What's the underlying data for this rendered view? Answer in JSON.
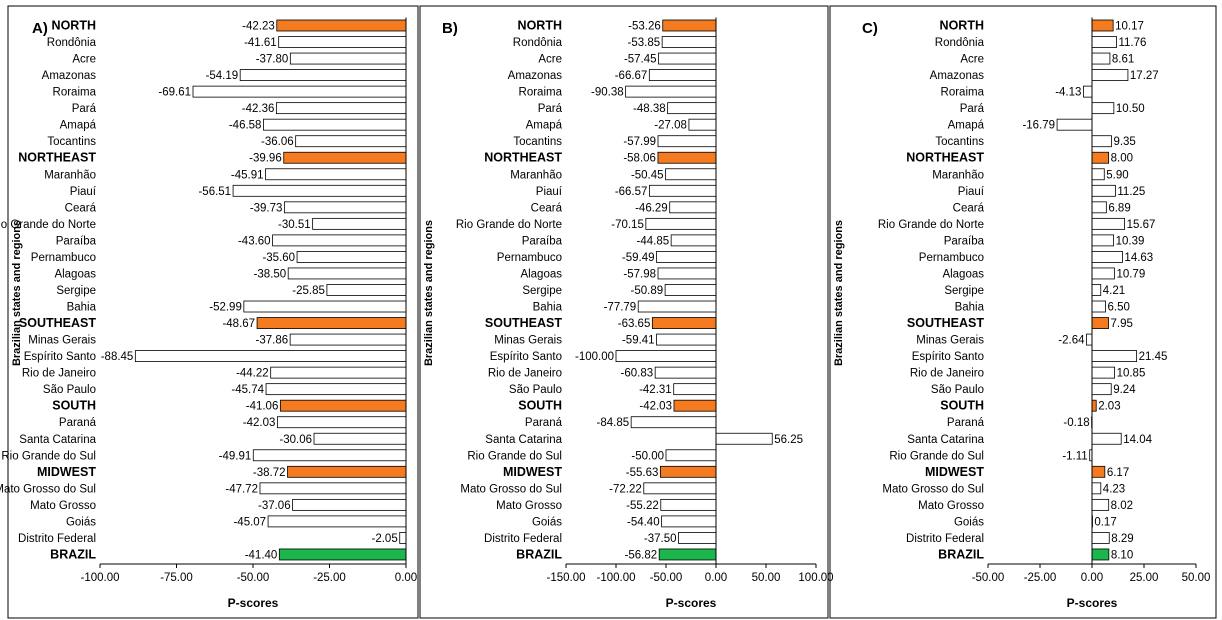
{
  "chart_data": [
    {
      "type": "bar",
      "orientation": "horizontal",
      "panel_label": "A)",
      "xlabel": "P-scores",
      "ylabel": "Brazilian states and regions",
      "xlim": [
        -100,
        0
      ],
      "xticks": [
        "-100.00",
        "-75.00",
        "-50.00",
        "-25.00",
        "0.00"
      ],
      "categories": [
        "NORTH",
        "Rondônia",
        "Acre",
        "Amazonas",
        "Roraima",
        "Pará",
        "Amapá",
        "Tocantins",
        "NORTHEAST",
        "Maranhão",
        "Piauí",
        "Ceará",
        "Rio Grande do Norte",
        "Paraíba",
        "Pernambuco",
        "Alagoas",
        "Sergipe",
        "Bahia",
        "SOUTHEAST",
        "Minas Gerais",
        "Espírito Santo",
        "Rio de Janeiro",
        "São Paulo",
        "SOUTH",
        "Paraná",
        "Santa Catarina",
        "Rio Grande do Sul",
        "MIDWEST",
        "Mato Grosso do Sul",
        "Mato Grosso",
        "Goiás",
        "Distrito Federal",
        "BRAZIL"
      ],
      "values": [
        -42.23,
        -41.61,
        -37.8,
        -54.19,
        -69.61,
        -42.36,
        -46.58,
        -36.06,
        -39.96,
        -45.91,
        -56.51,
        -39.73,
        -30.51,
        -43.6,
        -35.6,
        -38.5,
        -25.85,
        -52.99,
        -48.67,
        -37.86,
        -88.45,
        -44.22,
        -45.74,
        -41.06,
        -42.03,
        -30.06,
        -49.91,
        -38.72,
        -47.72,
        -37.06,
        -45.07,
        -2.05,
        -41.4
      ],
      "value_labels": [
        "-42.23",
        "-41.61",
        "-37.80",
        "-54.19",
        "-69.61",
        "-42.36",
        "-46.58",
        "-36.06",
        "-39.96",
        "-45.91",
        "-56.51",
        "-39.73",
        "-30.51",
        "-43.60",
        "-35.60",
        "-38.50",
        "-25.85",
        "-52.99",
        "-48.67",
        "-37.86",
        "-88.45",
        "-44.22",
        "-45.74",
        "-41.06",
        "-42.03",
        "-30.06",
        "-49.91",
        "-38.72",
        "-47.72",
        "-37.06",
        "-45.07",
        "-2.05",
        "-41.40"
      ]
    },
    {
      "type": "bar",
      "orientation": "horizontal",
      "panel_label": "B)",
      "xlabel": "P-scores",
      "ylabel": "Brazilian states and regions",
      "xlim": [
        -150,
        100
      ],
      "xticks": [
        "-150.00",
        "-100.00",
        "-50.00",
        "0.00",
        "50.00",
        "100.00"
      ],
      "categories": [
        "NORTH",
        "Rondônia",
        "Acre",
        "Amazonas",
        "Roraima",
        "Pará",
        "Amapá",
        "Tocantins",
        "NORTHEAST",
        "Maranhão",
        "Piauí",
        "Ceará",
        "Rio Grande do Norte",
        "Paraíba",
        "Pernambuco",
        "Alagoas",
        "Sergipe",
        "Bahia",
        "SOUTHEAST",
        "Minas Gerais",
        "Espírito Santo",
        "Rio de Janeiro",
        "São Paulo",
        "SOUTH",
        "Paraná",
        "Santa Catarina",
        "Rio Grande do Sul",
        "MIDWEST",
        "Mato Grosso do Sul",
        "Mato Grosso",
        "Goiás",
        "Distrito Federal",
        "BRAZIL"
      ],
      "values": [
        -53.26,
        -53.85,
        -57.45,
        -66.67,
        -90.38,
        -48.38,
        -27.08,
        -57.99,
        -58.06,
        -50.45,
        -66.57,
        -46.29,
        -70.15,
        -44.85,
        -59.49,
        -57.98,
        -50.89,
        -77.79,
        -63.65,
        -59.41,
        -100.0,
        -60.83,
        -42.31,
        -42.03,
        -84.85,
        56.25,
        -50.0,
        -55.63,
        -72.22,
        -55.22,
        -54.4,
        -37.5,
        -56.82
      ],
      "value_labels": [
        "-53.26",
        "-53.85",
        "-57.45",
        "-66.67",
        "-90.38",
        "-48.38",
        "-27.08",
        "-57.99",
        "-58.06",
        "-50.45",
        "-66.57",
        "-46.29",
        "-70.15",
        "-44.85",
        "-59.49",
        "-57.98",
        "-50.89",
        "-77.79",
        "-63.65",
        "-59.41",
        "-100.00",
        "-60.83",
        "-42.31",
        "-42.03",
        "-84.85",
        "56.25",
        "-50.00",
        "-55.63",
        "-72.22",
        "-55.22",
        "-54.40",
        "-37.50",
        "-56.82"
      ]
    },
    {
      "type": "bar",
      "orientation": "horizontal",
      "panel_label": "C)",
      "xlabel": "P-scores",
      "ylabel": "Brazilian states and regions",
      "xlim": [
        -50,
        50
      ],
      "xticks": [
        "-50.00",
        "-25.00",
        "0.00",
        "25.00",
        "50.00"
      ],
      "categories": [
        "NORTH",
        "Rondônia",
        "Acre",
        "Amazonas",
        "Roraima",
        "Pará",
        "Amapá",
        "Tocantins",
        "NORTHEAST",
        "Maranhão",
        "Piauí",
        "Ceará",
        "Rio Grande do Norte",
        "Paraíba",
        "Pernambuco",
        "Alagoas",
        "Sergipe",
        "Bahia",
        "SOUTHEAST",
        "Minas Gerais",
        "Espírito Santo",
        "Rio de Janeiro",
        "São Paulo",
        "SOUTH",
        "Paraná",
        "Santa Catarina",
        "Rio Grande do Sul",
        "MIDWEST",
        "Mato Grosso do Sul",
        "Mato Grosso",
        "Goiás",
        "Distrito Federal",
        "BRAZIL"
      ],
      "values": [
        10.17,
        11.76,
        8.61,
        17.27,
        -4.13,
        10.5,
        -16.79,
        9.35,
        8.0,
        5.9,
        11.25,
        6.89,
        15.67,
        10.39,
        14.63,
        10.79,
        4.21,
        6.5,
        7.95,
        -2.64,
        21.45,
        10.85,
        9.24,
        2.03,
        -0.18,
        14.04,
        -1.11,
        6.17,
        4.23,
        8.02,
        0.17,
        8.29,
        8.1
      ],
      "value_labels": [
        "10.17",
        "11.76",
        "8.61",
        "17.27",
        "-4.13",
        "10.50",
        "-16.79",
        "9.35",
        "8.00",
        "5.90",
        "11.25",
        "6.89",
        "15.67",
        "10.39",
        "14.63",
        "10.79",
        "4.21",
        "6.50",
        "7.95",
        "-2.64",
        "21.45",
        "10.85",
        "9.24",
        "2.03",
        "-0.18",
        "14.04",
        "-1.11",
        "6.17",
        "4.23",
        "8.02",
        "0.17",
        "8.29",
        "8.10"
      ]
    }
  ],
  "colors": {
    "region_fill": "#f47b20",
    "country_fill": "#1db64c",
    "state_fill": "#ffffff",
    "stroke": "#000000"
  },
  "region_categories": [
    "NORTH",
    "NORTHEAST",
    "SOUTHEAST",
    "SOUTH",
    "MIDWEST"
  ],
  "country_category": "BRAZIL"
}
